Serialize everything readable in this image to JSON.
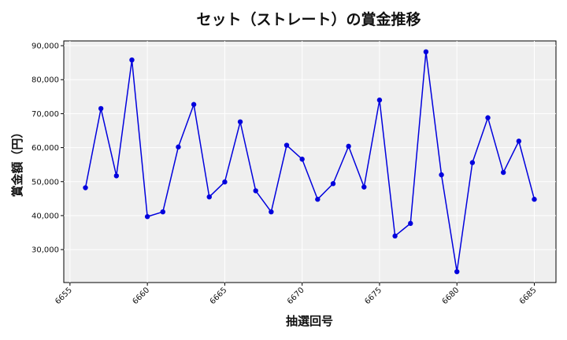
{
  "chart_data": {
    "type": "line",
    "title": "セット（ストレート）の賞金推移",
    "xlabel": "抽選回号",
    "ylabel": "賞金額（円）",
    "x": [
      6656,
      6657,
      6658,
      6659,
      6660,
      6661,
      6662,
      6663,
      6664,
      6665,
      6666,
      6667,
      6668,
      6669,
      6670,
      6671,
      6672,
      6673,
      6674,
      6675,
      6676,
      6677,
      6678,
      6679,
      6680,
      6681,
      6682,
      6683,
      6684,
      6685
    ],
    "series": [
      {
        "values": [
          48200,
          71500,
          51700,
          85800,
          39700,
          41100,
          60200,
          72700,
          45500,
          49900,
          67600,
          47300,
          41100,
          60700,
          56600,
          44800,
          49400,
          60400,
          48400,
          74000,
          34000,
          37700,
          88200,
          52000,
          23500,
          55600,
          68800,
          52700,
          61900,
          44800
        ],
        "color": "#0000dd"
      }
    ],
    "xlim": [
      6654.6,
      6686.4
    ],
    "ylim": [
      20300,
      91400
    ],
    "xticks": [
      6655,
      6660,
      6665,
      6670,
      6675,
      6680,
      6685
    ],
    "yticks": [
      30000,
      40000,
      50000,
      60000,
      70000,
      80000,
      90000
    ],
    "ytick_labels": [
      "30,000",
      "40,000",
      "50,000",
      "60,000",
      "70,000",
      "80,000",
      "90,000"
    ],
    "grid": true,
    "plot_background": "#efefef"
  }
}
